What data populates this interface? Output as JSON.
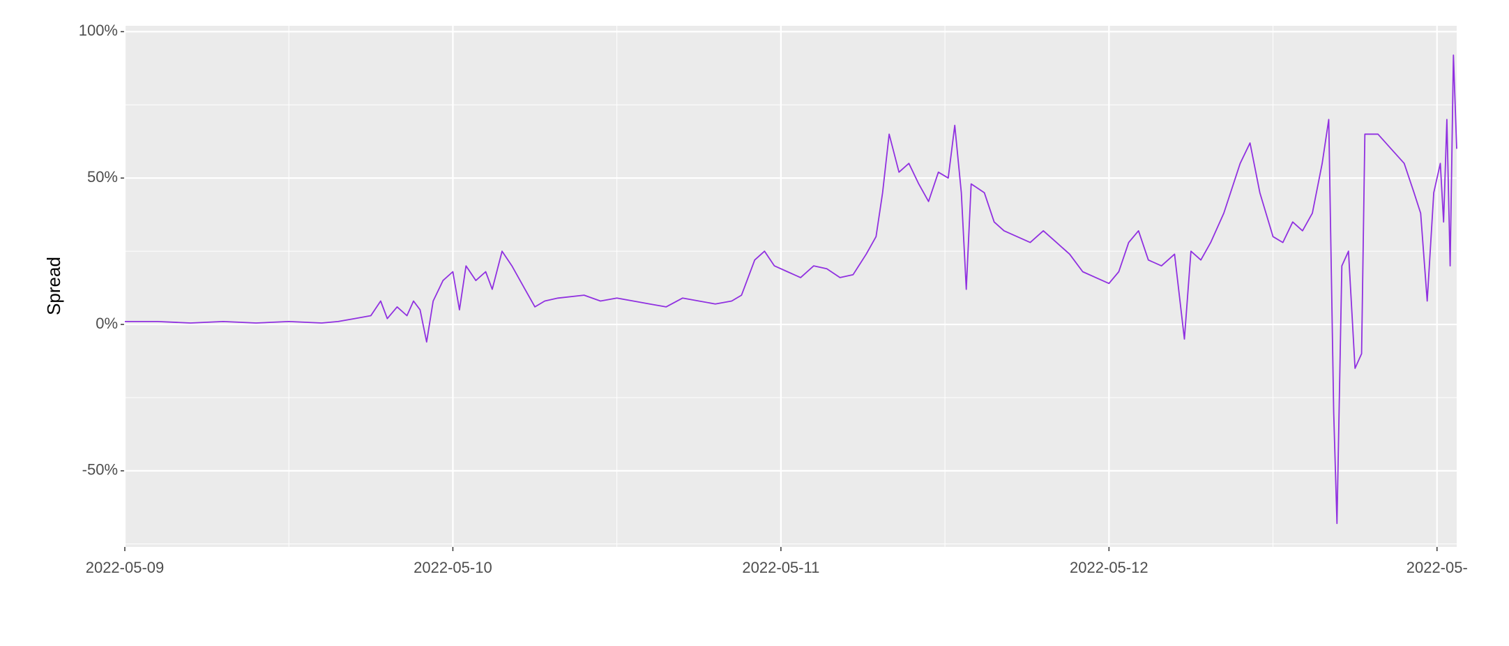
{
  "chart_data": {
    "type": "line",
    "y_label": "Spread",
    "color": "#9030e0",
    "grid": true,
    "xlim": [
      0,
      4.06
    ],
    "xticks": [
      {
        "value": 0,
        "label": "2022-05-09"
      },
      {
        "value": 1,
        "label": "2022-05-10"
      },
      {
        "value": 2,
        "label": "2022-05-11"
      },
      {
        "value": 3,
        "label": "2022-05-12"
      },
      {
        "value": 4,
        "label": "2022-05-"
      }
    ],
    "ylim": [
      -76,
      102
    ],
    "yticks": [
      {
        "value": -50,
        "label": "-50%"
      },
      {
        "value": 0,
        "label": "0%"
      },
      {
        "value": 50,
        "label": "50%"
      },
      {
        "value": 100,
        "label": "100%"
      }
    ],
    "x": [
      0,
      0.1,
      0.2,
      0.3,
      0.4,
      0.5,
      0.6,
      0.65,
      0.7,
      0.75,
      0.78,
      0.8,
      0.83,
      0.86,
      0.88,
      0.9,
      0.92,
      0.94,
      0.97,
      1.0,
      1.02,
      1.04,
      1.07,
      1.1,
      1.12,
      1.15,
      1.18,
      1.22,
      1.25,
      1.28,
      1.32,
      1.4,
      1.45,
      1.5,
      1.55,
      1.6,
      1.65,
      1.7,
      1.75,
      1.8,
      1.85,
      1.88,
      1.92,
      1.95,
      1.98,
      2.02,
      2.06,
      2.1,
      2.14,
      2.18,
      2.22,
      2.26,
      2.29,
      2.31,
      2.33,
      2.36,
      2.39,
      2.42,
      2.45,
      2.48,
      2.51,
      2.53,
      2.55,
      2.565,
      2.58,
      2.62,
      2.65,
      2.68,
      2.72,
      2.76,
      2.8,
      2.84,
      2.88,
      2.92,
      2.96,
      3.0,
      3.03,
      3.06,
      3.09,
      3.12,
      3.16,
      3.2,
      3.23,
      3.25,
      3.28,
      3.31,
      3.35,
      3.4,
      3.43,
      3.46,
      3.5,
      3.53,
      3.56,
      3.59,
      3.62,
      3.65,
      3.67,
      3.685,
      3.695,
      3.71,
      3.73,
      3.75,
      3.77,
      3.78,
      3.82,
      3.86,
      3.9,
      3.93,
      3.95,
      3.97,
      3.99,
      4.01,
      4.02,
      4.03,
      4.04,
      4.05,
      4.06
    ],
    "values": [
      1,
      1,
      0.5,
      1,
      0.5,
      1,
      0.5,
      1,
      2,
      3,
      8,
      2,
      6,
      3,
      8,
      5,
      -6,
      8,
      15,
      18,
      5,
      20,
      15,
      18,
      12,
      25,
      20,
      12,
      6,
      8,
      9,
      10,
      8,
      9,
      8,
      7,
      6,
      9,
      8,
      7,
      8,
      10,
      22,
      25,
      20,
      18,
      16,
      20,
      19,
      16,
      17,
      24,
      30,
      45,
      65,
      52,
      55,
      48,
      42,
      52,
      50,
      68,
      45,
      12,
      48,
      45,
      35,
      32,
      30,
      28,
      32,
      28,
      24,
      18,
      16,
      14,
      18,
      28,
      32,
      22,
      20,
      24,
      -5,
      25,
      22,
      28,
      38,
      55,
      62,
      45,
      30,
      28,
      35,
      32,
      38,
      55,
      70,
      -30,
      -68,
      20,
      25,
      -15,
      -10,
      65,
      65,
      60,
      55,
      45,
      38,
      8,
      45,
      55,
      35,
      70,
      20,
      92,
      60
    ]
  }
}
